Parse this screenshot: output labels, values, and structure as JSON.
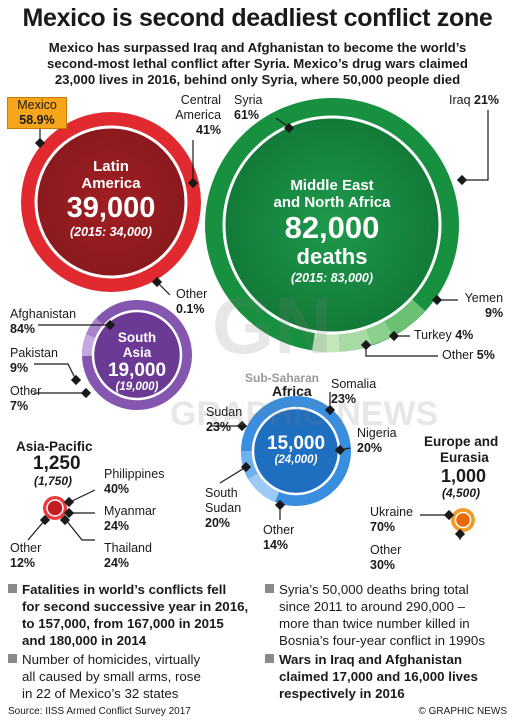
{
  "header": {
    "title": "Mexico is second deadliest conflict zone",
    "subtitle_line1": "Mexico has surpassed Iraq and Afghanistan to become the world’s",
    "subtitle_line2": "second-most lethal conflict after Syria. Mexico’s drug wars claimed",
    "subtitle_line3": "23,000 lives in 2016, behind only Syria, where 50,000 people died"
  },
  "regions": {
    "latin_america": {
      "name_line1": "Latin",
      "name_line2": "America",
      "deaths": "39,000",
      "prev": "(2015: 34,000)",
      "color": "#c8202a",
      "labels": {
        "mexico_name": "Mexico",
        "mexico_pct": "58.9%",
        "central_name": "Central",
        "central_name2": "America",
        "central_pct": "41%",
        "other_name": "Other",
        "other_pct": "0.1%"
      }
    },
    "middle_east": {
      "name_line1": "Middle East",
      "name_line2": "and North Africa",
      "deaths": "82,000",
      "unit": "deaths",
      "prev": "(2015: 83,000)",
      "color": "#1a9a4a",
      "labels": {
        "syria_name": "Syria",
        "syria_pct": "61%",
        "iraq_name": "Iraq",
        "iraq_pct": "21%",
        "yemen_name": "Yemen",
        "yemen_pct": "9%",
        "turkey_name": "Turkey",
        "turkey_pct": "4%",
        "other_name": "Other",
        "other_pct": "5%"
      }
    },
    "south_asia": {
      "name_line1": "South",
      "name_line2": "Asia",
      "deaths": "19,000",
      "prev": "(19,000)",
      "color": "#7a4aa0",
      "labels": {
        "afghanistan_name": "Afghanistan",
        "afghanistan_pct": "84%",
        "pakistan_name": "Pakistan",
        "pakistan_pct": "9%",
        "other_name": "Other",
        "other_pct": "7%"
      }
    },
    "sub_saharan": {
      "name_line1": "Sub-Saharan",
      "name_line2": "Africa",
      "deaths": "15,000",
      "prev": "(24,000)",
      "color": "#2a7fd0",
      "labels": {
        "somalia_name": "Somalia",
        "somalia_pct": "23%",
        "sudan_name": "Sudan",
        "sudan_pct": "23%",
        "nigeria_name": "Nigeria",
        "nigeria_pct": "20%",
        "ssudan_name": "South",
        "ssudan_name2": "Sudan",
        "ssudan_pct": "20%",
        "other_name": "Other",
        "other_pct": "14%"
      }
    },
    "asia_pacific": {
      "name": "Asia-Pacific",
      "deaths": "1,250",
      "prev": "(1,750)",
      "color": "#d0202a",
      "labels": {
        "philippines_name": "Philippines",
        "philippines_pct": "40%",
        "myanmar_name": "Myanmar",
        "myanmar_pct": "24%",
        "thailand_name": "Thailand",
        "thailand_pct": "24%",
        "other_name": "Other",
        "other_pct": "12%"
      }
    },
    "europe": {
      "name_line1": "Europe and",
      "name_line2": "Eurasia",
      "deaths": "1,000",
      "prev": "(4,500)",
      "color": "#f07a10",
      "labels": {
        "ukraine_name": "Ukraine",
        "ukraine_pct": "70%",
        "other_name": "Other",
        "other_pct": "30%"
      }
    }
  },
  "notes": {
    "n1_l1": "Fatalities in world’s conflicts fell",
    "n1_l2": "for second successive year in 2016,",
    "n1_l3": "to 157,000, from 167,000 in 2015",
    "n1_l4": "and 180,000 in 2014",
    "n2_l1": "Syria’s 50,000 deaths bring total",
    "n2_l2": "since 2011 to around 290,000 –",
    "n2_l3": "more than twice number killed in",
    "n2_l4": "Bosnia’s four-year conflict in 1990s",
    "n3_l1": "Number of homicides, virtually",
    "n3_l2": "all caused by small arms, rose",
    "n3_l3": "in 22 of Mexico’s 32 states",
    "n4_l1": "Wars in Iraq and Afghanistan",
    "n4_l2": "claimed 17,000 and 16,000 lives",
    "n4_l3": "respectively in 2016"
  },
  "footer": {
    "source": "Source: IISS Armed Conflict Survey 2017",
    "credit": "© GRAPHIC NEWS"
  },
  "watermark": {
    "logo": "GN",
    "text": "GRAPHIC NEWS"
  }
}
